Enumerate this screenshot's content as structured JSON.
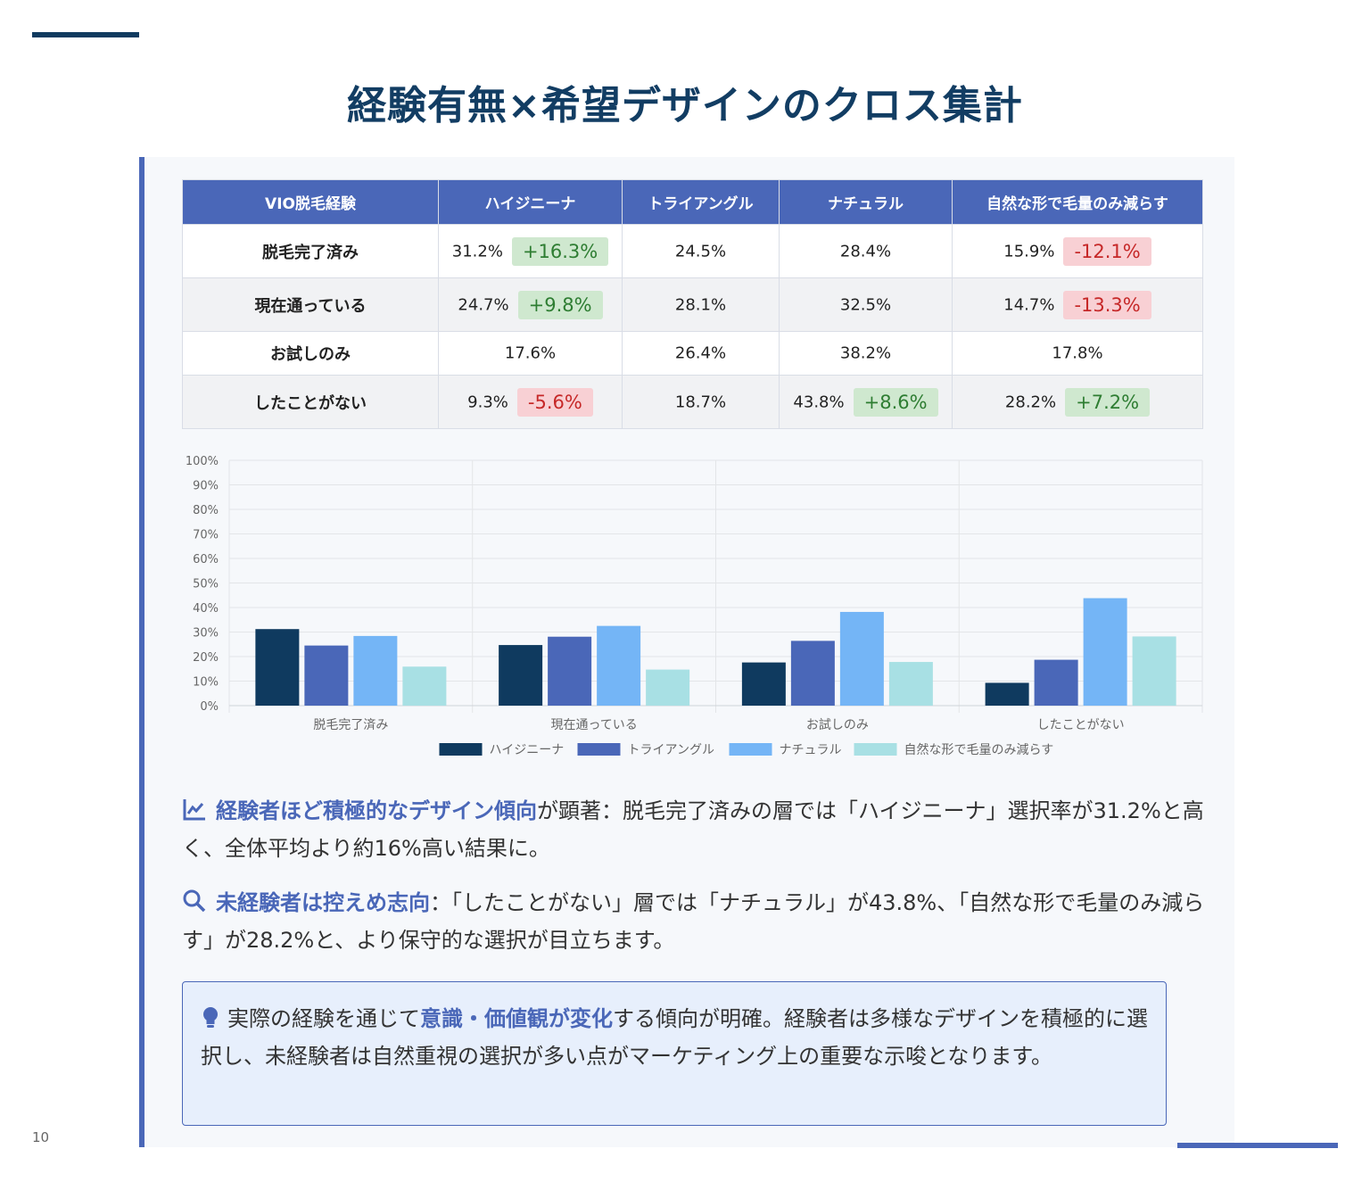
{
  "page": {
    "title": "経験有無×希望デザインのクロス集計",
    "page_number": "10",
    "colors": {
      "accent": "#4a67b8",
      "navy": "#0f3a5f",
      "positive": "#2e7d32",
      "negative": "#c62828"
    }
  },
  "table": {
    "headers": [
      "VIO脱毛経験",
      "ハイジニーナ",
      "トライアングル",
      "ナチュラル",
      "自然な形で毛量のみ減らす"
    ],
    "rows": [
      {
        "label": "脱毛完了済み",
        "cells": [
          {
            "value": "31.2%",
            "diff": "+16.3%",
            "sign": "pos"
          },
          {
            "value": "24.5%"
          },
          {
            "value": "28.4%"
          },
          {
            "value": "15.9%",
            "diff": "-12.1%",
            "sign": "neg"
          }
        ]
      },
      {
        "label": "現在通っている",
        "cells": [
          {
            "value": "24.7%",
            "diff": "+9.8%",
            "sign": "pos"
          },
          {
            "value": "28.1%"
          },
          {
            "value": "32.5%"
          },
          {
            "value": "14.7%",
            "diff": "-13.3%",
            "sign": "neg"
          }
        ]
      },
      {
        "label": "お試しのみ",
        "cells": [
          {
            "value": "17.6%"
          },
          {
            "value": "26.4%"
          },
          {
            "value": "38.2%"
          },
          {
            "value": "17.8%"
          }
        ]
      },
      {
        "label": "したことがない",
        "cells": [
          {
            "value": "9.3%",
            "diff": "-5.6%",
            "sign": "neg"
          },
          {
            "value": "18.7%"
          },
          {
            "value": "43.8%",
            "diff": "+8.6%",
            "sign": "pos"
          },
          {
            "value": "28.2%",
            "diff": "+7.2%",
            "sign": "pos"
          }
        ]
      }
    ]
  },
  "chart_data": {
    "type": "bar",
    "categories": [
      "脱毛完了済み",
      "現在通っている",
      "お試しのみ",
      "したことがない"
    ],
    "series": [
      {
        "name": "ハイジニーナ",
        "color": "#0f3a5f",
        "values": [
          31.2,
          24.7,
          17.6,
          9.3
        ]
      },
      {
        "name": "トライアングル",
        "color": "#4a67b8",
        "values": [
          24.5,
          28.1,
          26.4,
          18.7
        ]
      },
      {
        "name": "ナチュラル",
        "color": "#74b5f6",
        "values": [
          28.4,
          32.5,
          38.2,
          43.8
        ]
      },
      {
        "name": "自然な形で毛量のみ減らす",
        "color": "#a8e0e4",
        "values": [
          15.9,
          14.7,
          17.8,
          28.2
        ]
      }
    ],
    "ylim": [
      0,
      100
    ],
    "yticks": [
      "0%",
      "10%",
      "20%",
      "30%",
      "40%",
      "50%",
      "60%",
      "70%",
      "80%",
      "90%",
      "100%"
    ],
    "legend": "bottom-center",
    "grid": true
  },
  "insights": [
    {
      "icon": "chart-line-icon",
      "highlight": "経験者ほど積極的なデザイン傾向",
      "text": "が顕著：脱毛完了済みの層では「ハイジニーナ」選択率が31.2%と高く、全体平均より約16%高い結果に。"
    },
    {
      "icon": "search-icon",
      "highlight": "未経験者は控えめ志向",
      "text": "：「したことがない」層では「ナチュラル」が43.8%、「自然な形で毛量のみ減らす」が28.2%と、より保守的な選択が目立ちます。"
    }
  ],
  "note": {
    "icon": "lightbulb-icon",
    "before": "実際の経験を通じて",
    "highlight": "意識・価値観が変化",
    "after": "する傾向が明確。経験者は多様なデザインを積極的に選択し、未経験者は自然重視の選択が多い点がマーケティング上の重要な示唆となります。"
  }
}
